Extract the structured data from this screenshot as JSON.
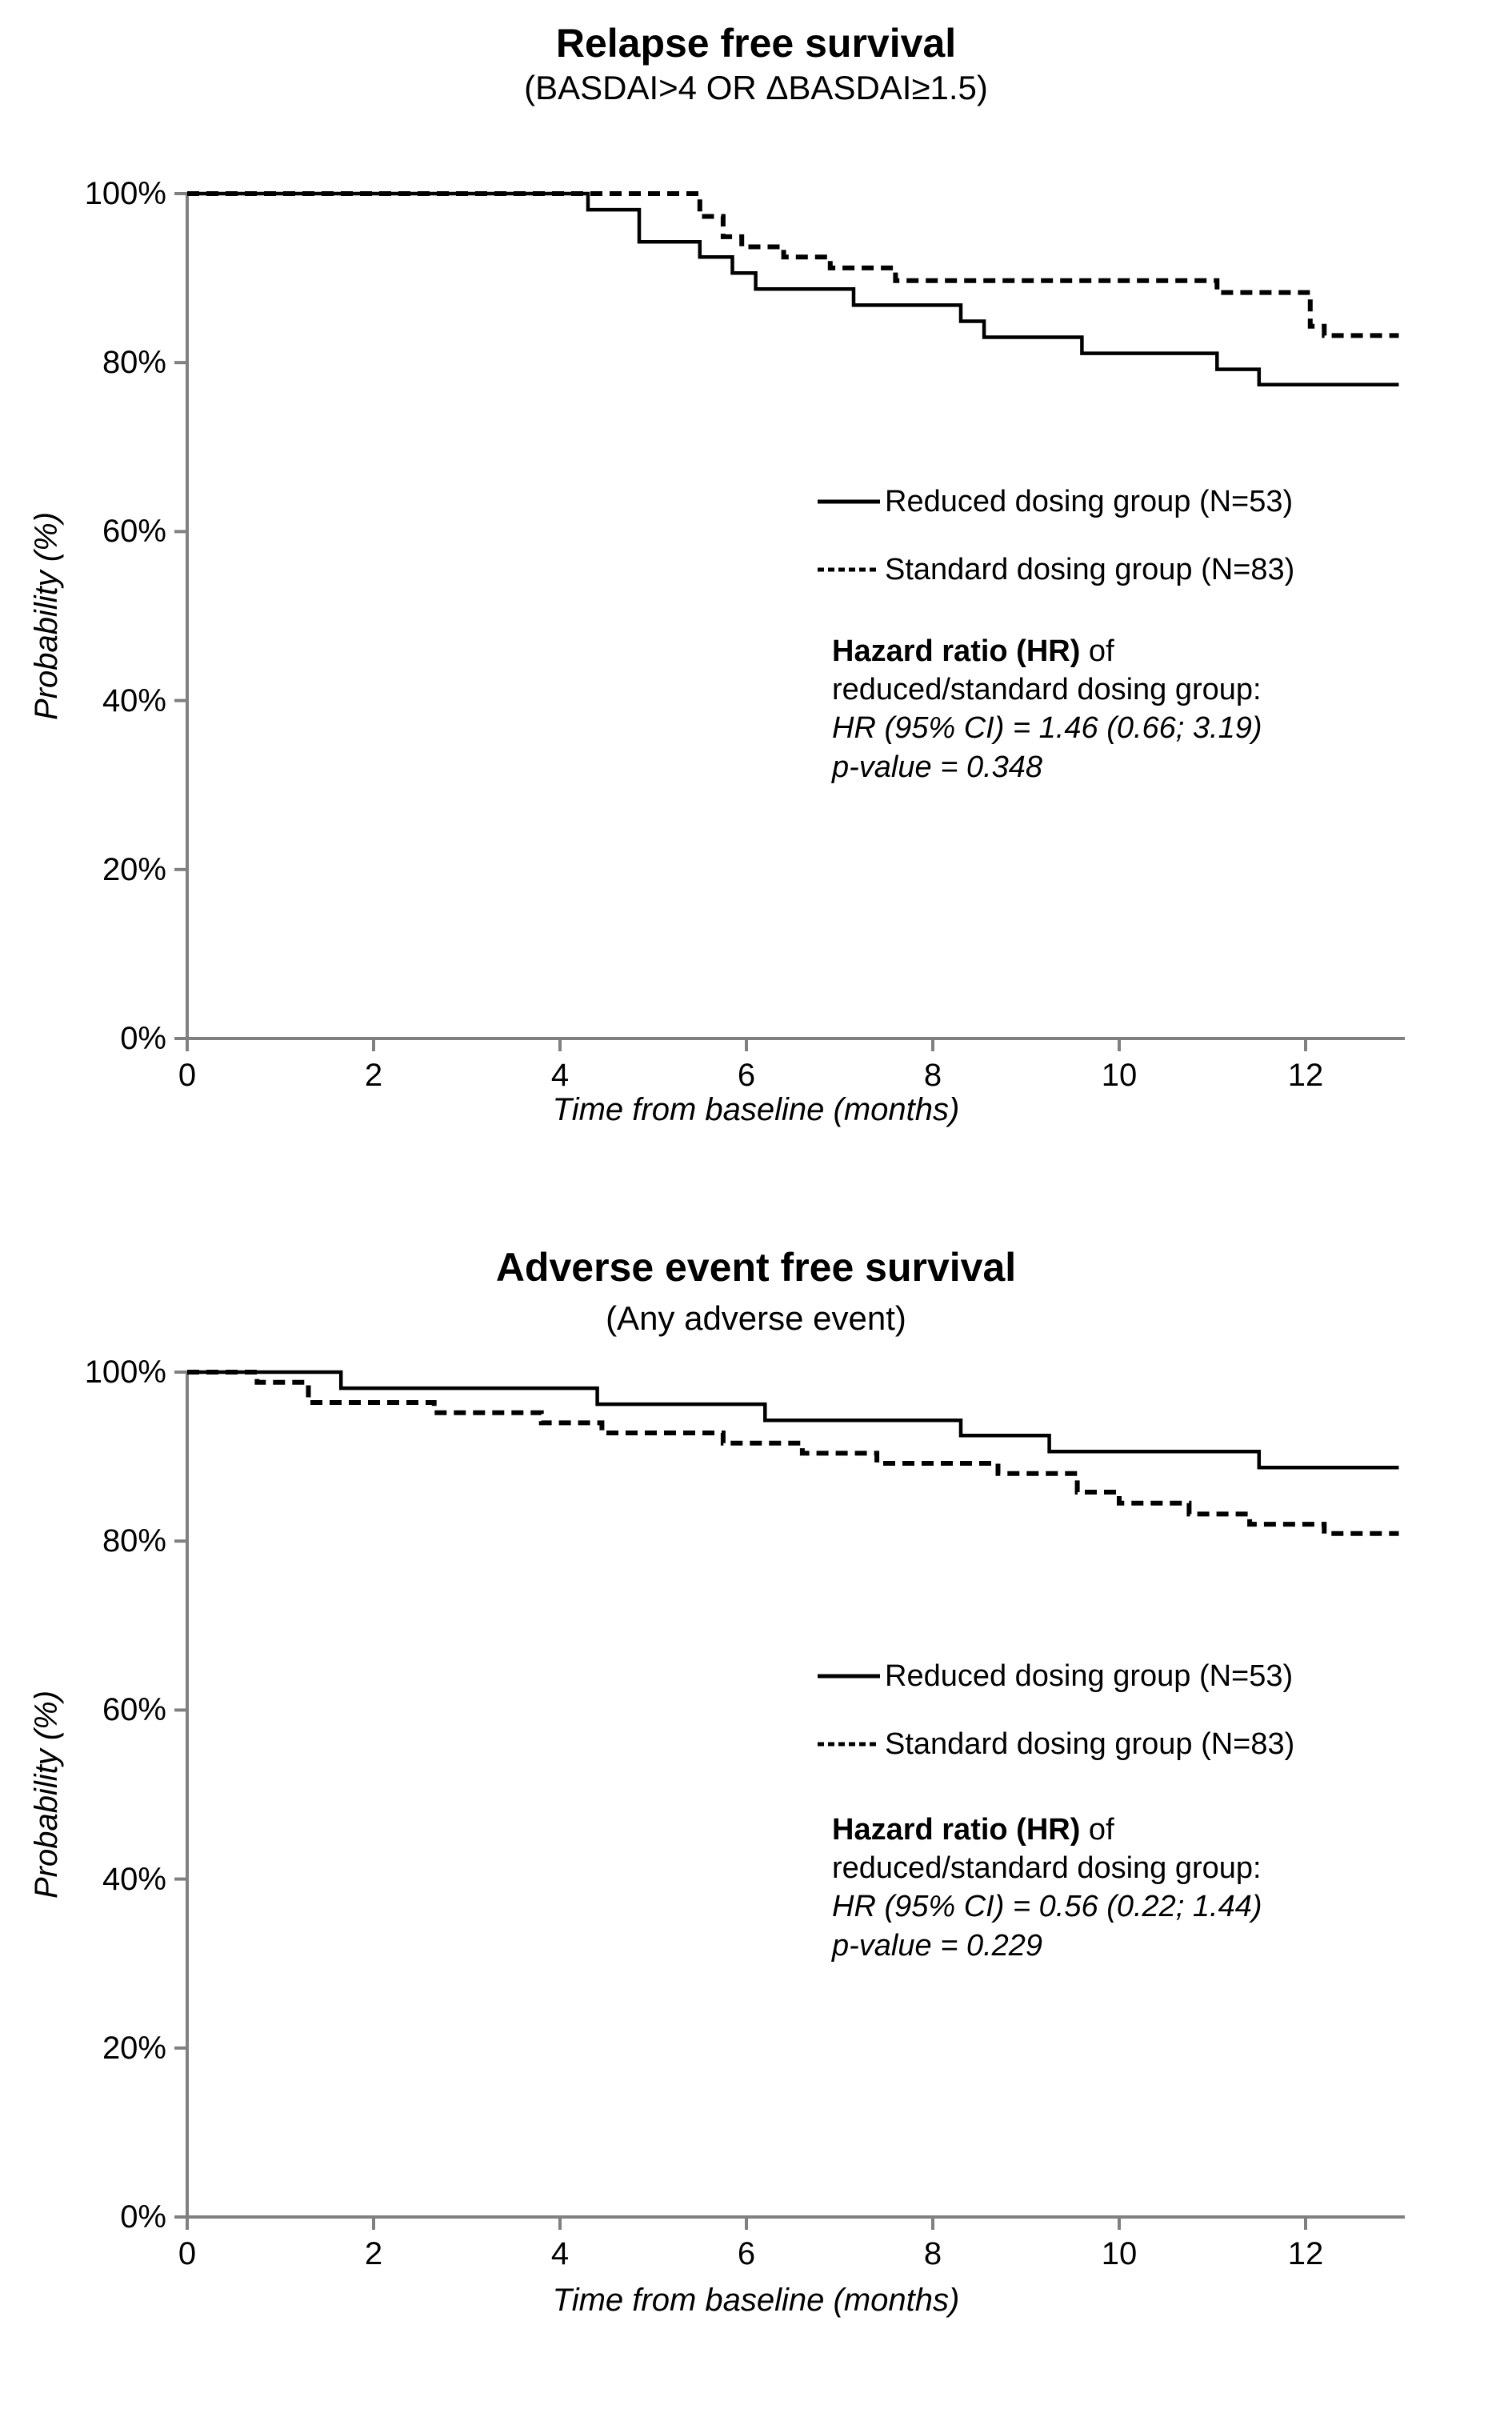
{
  "figure": {
    "background": "#ffffff",
    "colors": {
      "curve": "#000000",
      "axis": "#808080",
      "text": "#000000"
    }
  },
  "chart_data": [
    {
      "type": "line",
      "subtype": "kaplan-meier-step",
      "title": "Relapse free survival",
      "subtitle": "(BASDAI>4 OR ΔBASDAI≥1.5)",
      "xlabel": "Time from baseline (months)",
      "ylabel": "Probability (%)",
      "xlim": [
        0,
        13
      ],
      "ylim": [
        0,
        100
      ],
      "x_tick_labels": [
        "0",
        "2",
        "4",
        "6",
        "8",
        "10",
        "12"
      ],
      "x_tick_values": [
        0,
        2,
        4,
        6,
        8,
        10,
        12
      ],
      "y_tick_labels": [
        "100%",
        "80%",
        "60%",
        "40%",
        "20%",
        "0%"
      ],
      "y_tick_values": [
        100,
        80,
        60,
        40,
        20,
        0
      ],
      "grid": false,
      "legend_position": "center-right",
      "legend": [
        {
          "label": "Reduced dosing group (N=53)",
          "style": "solid"
        },
        {
          "label": "Standard dosing group (N=83)",
          "style": "dashed"
        }
      ],
      "annotation": {
        "line1_bold": "Hazard ratio (HR)",
        "line1_rest": " of",
        "line2": "reduced/standard dosing group:",
        "line3": "HR (95% CI) = 1.46 (0.66; 3.19)",
        "line4": "p-value = 0.348"
      },
      "series": [
        {
          "name": "Reduced dosing group (N=53)",
          "style": "solid",
          "steps_month_percent": [
            [
              0,
              100
            ],
            [
              4.3,
              98.1
            ],
            [
              4.85,
              94.3
            ],
            [
              5.5,
              92.5
            ],
            [
              5.85,
              90.6
            ],
            [
              6.1,
              88.7
            ],
            [
              7.15,
              86.8
            ],
            [
              8.3,
              84.9
            ],
            [
              8.55,
              83.0
            ],
            [
              9.6,
              81.1
            ],
            [
              11.05,
              79.2
            ],
            [
              11.5,
              77.4
            ],
            [
              13,
              77.4
            ]
          ]
        },
        {
          "name": "Standard dosing group (N=83)",
          "style": "dashed",
          "steps_month_percent": [
            [
              0,
              100
            ],
            [
              5.5,
              97.3
            ],
            [
              5.75,
              94.9
            ],
            [
              5.95,
              93.7
            ],
            [
              6.4,
              92.5
            ],
            [
              6.9,
              91.2
            ],
            [
              7.6,
              89.7
            ],
            [
              11.05,
              88.3
            ],
            [
              12.05,
              84.3
            ],
            [
              12.2,
              83.2
            ],
            [
              13,
              83.2
            ]
          ]
        }
      ]
    },
    {
      "type": "line",
      "subtype": "kaplan-meier-step",
      "title": "Adverse event free survival",
      "subtitle": "(Any adverse event)",
      "xlabel": "Time from baseline (months)",
      "ylabel": "Probability (%)",
      "xlim": [
        0,
        13
      ],
      "ylim": [
        0,
        100
      ],
      "x_tick_labels": [
        "0",
        "2",
        "4",
        "6",
        "8",
        "10",
        "12"
      ],
      "x_tick_values": [
        0,
        2,
        4,
        6,
        8,
        10,
        12
      ],
      "y_tick_labels": [
        "100%",
        "80%",
        "60%",
        "40%",
        "20%",
        "0%"
      ],
      "y_tick_values": [
        100,
        80,
        60,
        40,
        20,
        0
      ],
      "grid": false,
      "legend_position": "center-right",
      "legend": [
        {
          "label": "Reduced dosing group (N=53)",
          "style": "solid"
        },
        {
          "label": "Standard dosing group (N=83)",
          "style": "dashed"
        }
      ],
      "annotation": {
        "line1_bold": "Hazard ratio (HR)",
        "line1_rest": " of",
        "line2": "reduced/standard dosing group:",
        "line3": "HR (95% CI) = 0.56 (0.22; 1.44)",
        "line4": "p-value = 0.229"
      },
      "series": [
        {
          "name": "Reduced dosing group (N=53)",
          "style": "solid",
          "steps_month_percent": [
            [
              0,
              100
            ],
            [
              1.65,
              98.1
            ],
            [
              4.4,
              96.2
            ],
            [
              6.2,
              94.3
            ],
            [
              8.3,
              92.5
            ],
            [
              9.25,
              90.6
            ],
            [
              11.5,
              88.7
            ],
            [
              13,
              88.7
            ]
          ]
        },
        {
          "name": "Standard dosing group (N=83)",
          "style": "dashed",
          "steps_month_percent": [
            [
              0,
              100
            ],
            [
              0.75,
              98.8
            ],
            [
              1.3,
              96.4
            ],
            [
              2.65,
              95.2
            ],
            [
              3.8,
              94.0
            ],
            [
              4.45,
              92.8
            ],
            [
              5.75,
              91.6
            ],
            [
              6.6,
              90.4
            ],
            [
              7.4,
              89.2
            ],
            [
              8.7,
              88.0
            ],
            [
              9.55,
              85.8
            ],
            [
              10.0,
              84.5
            ],
            [
              10.75,
              83.2
            ],
            [
              11.4,
              82.0
            ],
            [
              12.2,
              80.9
            ],
            [
              13,
              80.9
            ]
          ]
        }
      ]
    }
  ]
}
